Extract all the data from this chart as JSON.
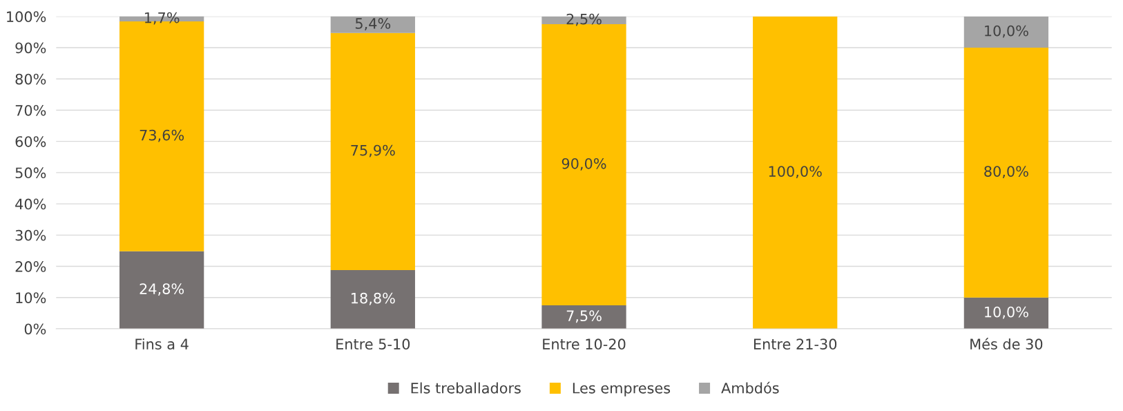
{
  "chart_data": {
    "type": "bar",
    "stacked": true,
    "categories": [
      "Fins a 4",
      "Entre 5-10",
      "Entre 10-20",
      "Entre 21-30",
      "Més de 30"
    ],
    "series": [
      {
        "name": "Els treballadors",
        "color": "#767171",
        "values": [
          24.8,
          18.8,
          7.5,
          0,
          10.0
        ],
        "value_labels": [
          "24,8%",
          "18,8%",
          "7,5%",
          null,
          "10,0%"
        ]
      },
      {
        "name": "Les empreses",
        "color": "#ffc000",
        "values": [
          73.6,
          75.9,
          90.0,
          100.0,
          80.0
        ],
        "value_labels": [
          "73,6%",
          "75,9%",
          "90,0%",
          "100,0%",
          "80,0%"
        ]
      },
      {
        "name": "Ambdós",
        "color": "#a5a5a5",
        "values": [
          1.7,
          5.4,
          2.5,
          0,
          10.0
        ],
        "value_labels": [
          "1,7%",
          "5,4%",
          "2,5%",
          null,
          "10,0%"
        ]
      }
    ],
    "ylim": [
      0,
      100
    ],
    "yticks": [
      {
        "value": 0,
        "label": "0%"
      },
      {
        "value": 10,
        "label": "10%"
      },
      {
        "value": 20,
        "label": "20%"
      },
      {
        "value": 30,
        "label": "30%"
      },
      {
        "value": 40,
        "label": "40%"
      },
      {
        "value": 50,
        "label": "50%"
      },
      {
        "value": 60,
        "label": "60%"
      },
      {
        "value": 70,
        "label": "70%"
      },
      {
        "value": 80,
        "label": "80%"
      },
      {
        "value": 90,
        "label": "90%"
      },
      {
        "value": 100,
        "label": "100%"
      }
    ],
    "grid": "y",
    "legend": "bottom"
  }
}
